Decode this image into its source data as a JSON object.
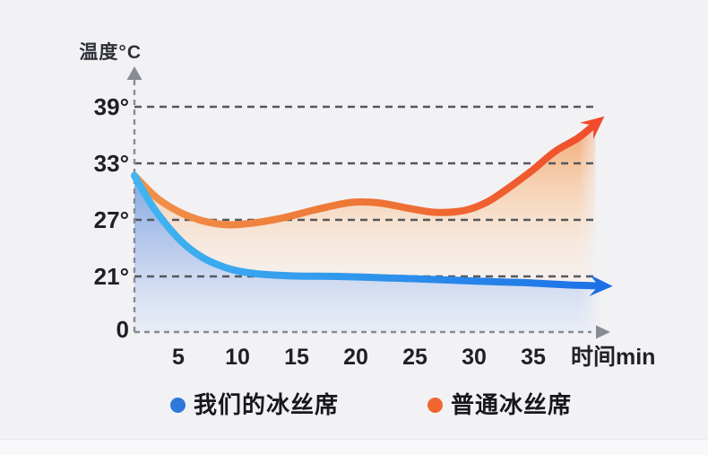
{
  "page": {
    "background": "#f2f2f5",
    "footer_strip_color": "#f8f8fb"
  },
  "chart_data": {
    "type": "area",
    "title": "",
    "ylabel": "温度°C",
    "xlabel": "时间min",
    "y_unit": "°C",
    "x_unit": "min",
    "grid": true,
    "legend_position": "bottom",
    "xlim": [
      0,
      42
    ],
    "ylim": [
      0,
      39
    ],
    "axis_color": "#878c94",
    "grid_color": "#54575d",
    "tick_text_color": "#1e2025",
    "y_ticks": [
      {
        "label": "39°",
        "value": 39
      },
      {
        "label": "33°",
        "value": 33
      },
      {
        "label": "27°",
        "value": 27
      },
      {
        "label": "21°",
        "value": 21
      },
      {
        "label": "0",
        "value": 0
      }
    ],
    "x_ticks": [
      {
        "label": "5",
        "value": 5
      },
      {
        "label": "10",
        "value": 10
      },
      {
        "label": "15",
        "value": 15
      },
      {
        "label": "20",
        "value": 20
      },
      {
        "label": "25",
        "value": 25
      },
      {
        "label": "30",
        "value": 30
      },
      {
        "label": "35",
        "value": 35
      }
    ],
    "series": [
      {
        "name": "我们的冰丝席",
        "legend_color": "#2f78db",
        "stroke_gradient": [
          "#41b5ef",
          "#2e93ec",
          "#1c6fe6"
        ],
        "fill_gradient": [
          "rgba(121,167,233,0.95)",
          "rgba(169,195,240,0.75)",
          "rgba(222,230,248,0.5)"
        ],
        "points": [
          [
            0,
            31.7
          ],
          [
            1.5,
            28.6
          ],
          [
            3,
            26.2
          ],
          [
            4.5,
            24.3
          ],
          [
            6,
            23.0
          ],
          [
            7.5,
            22.15
          ],
          [
            9,
            21.6
          ],
          [
            11,
            21.25
          ],
          [
            14,
            21.05
          ],
          [
            18,
            21.0
          ],
          [
            22,
            20.85
          ],
          [
            26,
            20.7
          ],
          [
            30,
            20.5
          ],
          [
            34,
            20.35
          ],
          [
            38,
            20.1
          ],
          [
            41,
            20.0
          ]
        ]
      },
      {
        "name": "普通冰丝席",
        "legend_color": "#f0662f",
        "stroke_gradient": [
          "#f0914a",
          "#ee7434",
          "#f14a2c"
        ],
        "fill_gradient": [
          "rgba(243,161,99,0.95)",
          "rgba(248,201,160,0.7)",
          "rgba(252,231,212,0.42)",
          "rgba(253,245,236,0.12)"
        ],
        "points": [
          [
            0,
            31.7
          ],
          [
            2,
            29.3
          ],
          [
            4,
            27.8
          ],
          [
            6,
            26.9
          ],
          [
            8,
            26.5
          ],
          [
            10,
            26.6
          ],
          [
            13,
            27.2
          ],
          [
            16,
            28.1
          ],
          [
            19,
            28.85
          ],
          [
            21.5,
            28.8
          ],
          [
            24,
            28.25
          ],
          [
            26.5,
            27.8
          ],
          [
            29,
            28.0
          ],
          [
            31,
            28.9
          ],
          [
            33,
            30.5
          ],
          [
            35,
            32.3
          ],
          [
            37,
            34.3
          ],
          [
            39,
            35.7
          ],
          [
            40.5,
            37.2
          ]
        ]
      }
    ]
  }
}
